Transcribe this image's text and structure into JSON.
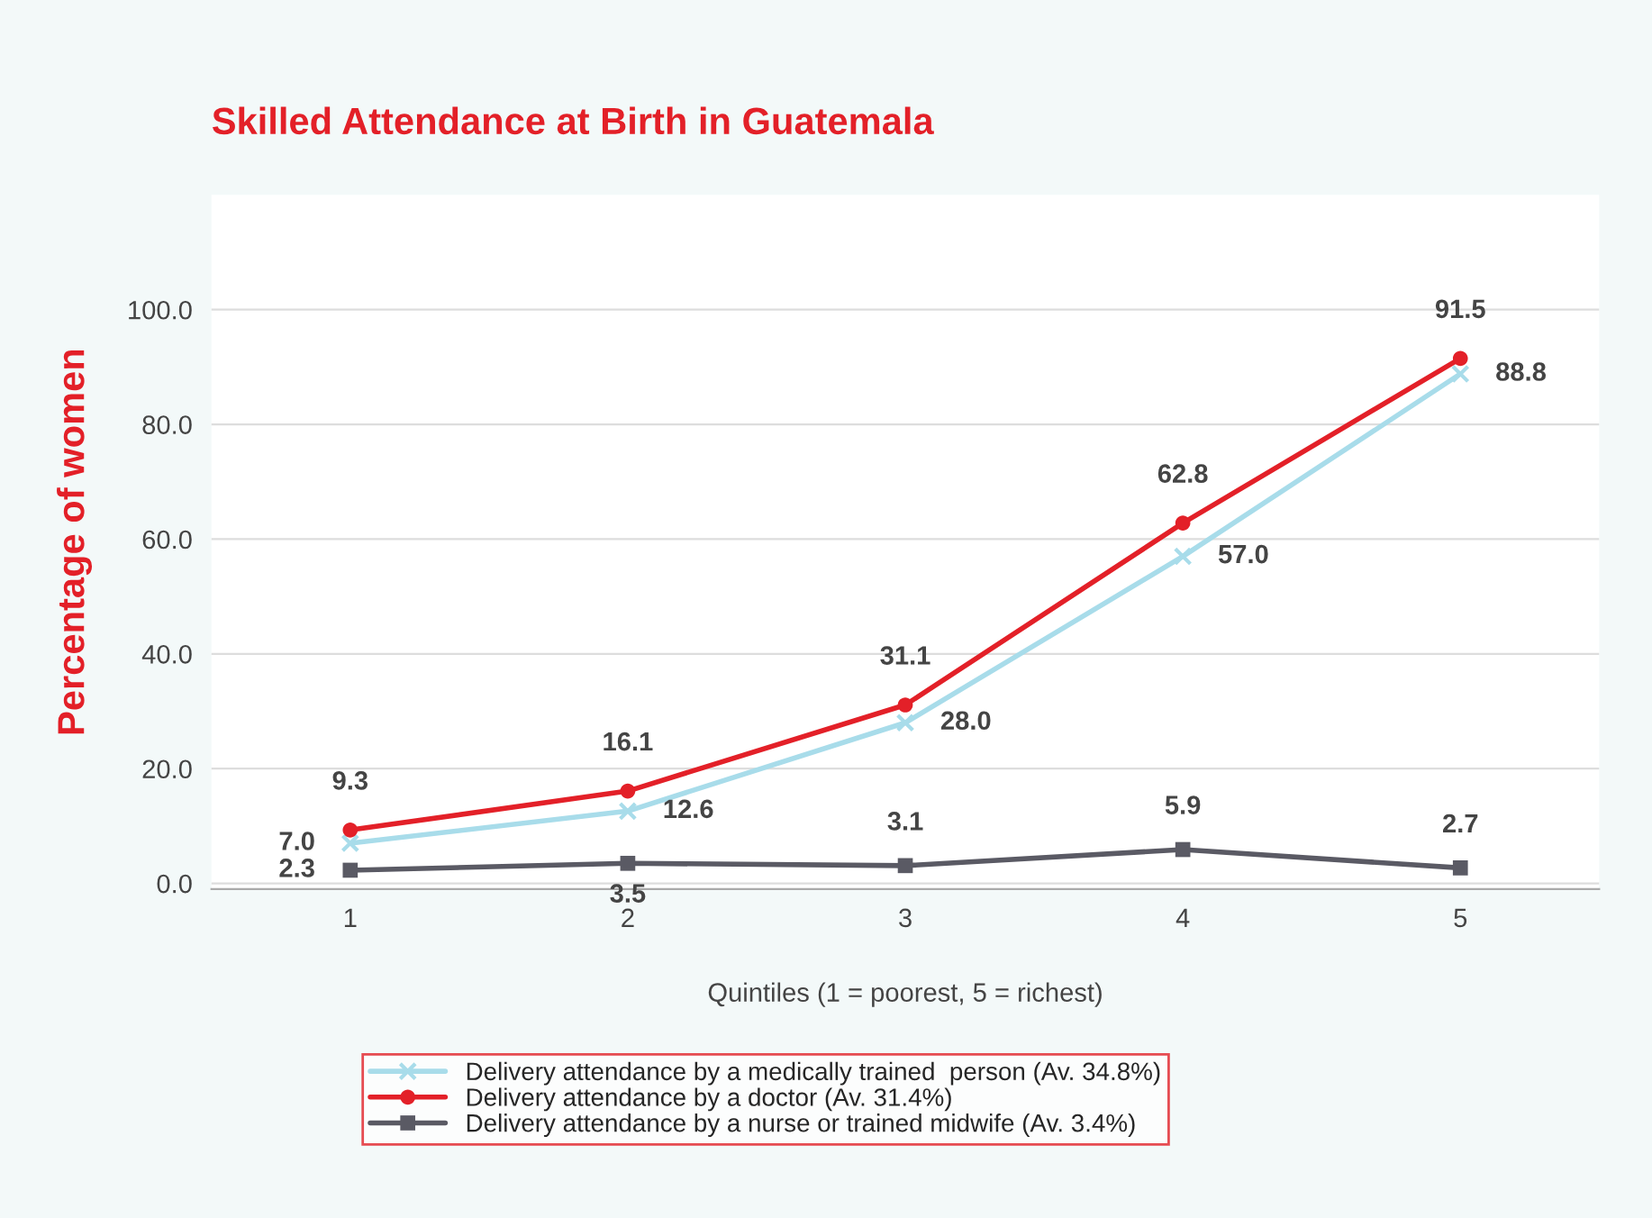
{
  "chart_data": {
    "type": "line",
    "title": "Skilled Attendance at Birth in Guatemala",
    "xlabel": "Quintiles (1 = poorest, 5 = richest)",
    "ylabel": "Percentage of women",
    "categories": [
      "1",
      "2",
      "3",
      "4",
      "5"
    ],
    "series": [
      {
        "name": "Delivery attendance by a medically trained  person (Av. 34.8%)",
        "color": "#a8dcea",
        "marker": "cross",
        "values": [
          7.0,
          12.6,
          28.0,
          57.0,
          88.8
        ],
        "value_labels": [
          "7.0",
          "12.6",
          "28.0",
          "57.0",
          "88.8"
        ]
      },
      {
        "name": "Delivery attendance by a doctor (Av. 31.4%)",
        "color": "#e32028",
        "marker": "circle",
        "values": [
          9.3,
          16.1,
          31.1,
          62.8,
          91.5
        ],
        "value_labels": [
          "9.3",
          "16.1",
          "31.1",
          "62.8",
          "91.5"
        ]
      },
      {
        "name": "Delivery attendance by a nurse or trained midwife (Av. 3.4%)",
        "color": "#5a5a64",
        "marker": "square",
        "values": [
          2.3,
          3.5,
          3.1,
          5.9,
          2.7
        ],
        "value_labels": [
          "2.3",
          "3.5",
          "3.1",
          "5.9",
          "2.7"
        ]
      }
    ],
    "ylim": [
      -1,
      120
    ],
    "yticks": [
      {
        "value": 0,
        "label": "0.0"
      },
      {
        "value": 20,
        "label": "20.0"
      },
      {
        "value": 40,
        "label": "40.0"
      },
      {
        "value": 60,
        "label": "60.0"
      },
      {
        "value": 80,
        "label": "80.0"
      },
      {
        "value": 100,
        "label": "100.0"
      }
    ],
    "grid": "y",
    "legend": "bottom"
  }
}
